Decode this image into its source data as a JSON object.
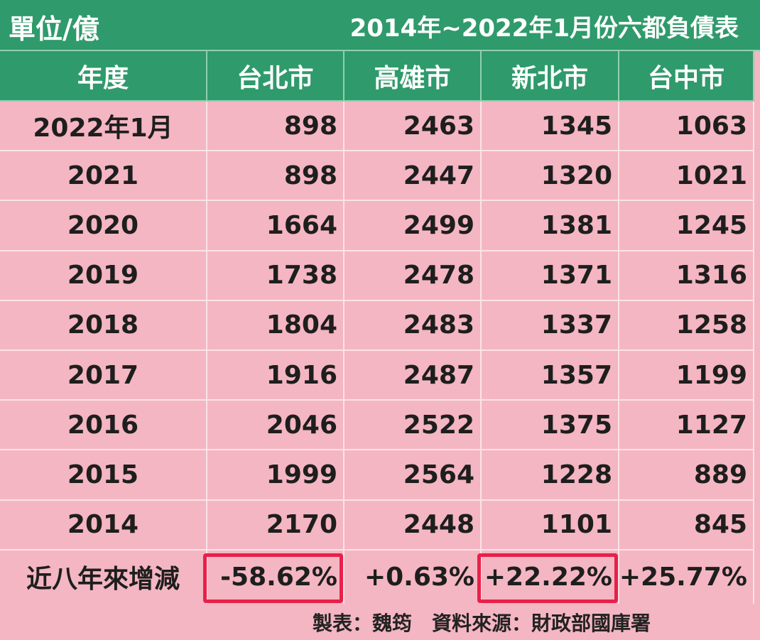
{
  "table": {
    "unit": "單位/億",
    "title": "2014年~2022年1月份六都負債表",
    "columns": [
      "年度",
      "台北市",
      "高雄市",
      "新北市",
      "台中市"
    ],
    "rows": [
      [
        "2022年1月",
        898,
        2463,
        1345,
        1063
      ],
      [
        "2021",
        898,
        2447,
        1320,
        1021
      ],
      [
        "2020",
        1664,
        2499,
        1381,
        1245
      ],
      [
        "2019",
        1738,
        2478,
        1371,
        1316
      ],
      [
        "2018",
        1804,
        2483,
        1337,
        1258
      ],
      [
        "2017",
        1916,
        2487,
        1357,
        1199
      ],
      [
        "2016",
        2046,
        2522,
        1375,
        1127
      ],
      [
        "2015",
        1999,
        2564,
        1228,
        889
      ],
      [
        "2014",
        2170,
        2448,
        1101,
        845
      ]
    ],
    "change_row": [
      "近八年來增減",
      "-58.62%",
      "+0.63%",
      "+22.22%",
      "+25.77%"
    ]
  },
  "footer": "製表：魏筠　資料來源：財政部國庫署"
}
